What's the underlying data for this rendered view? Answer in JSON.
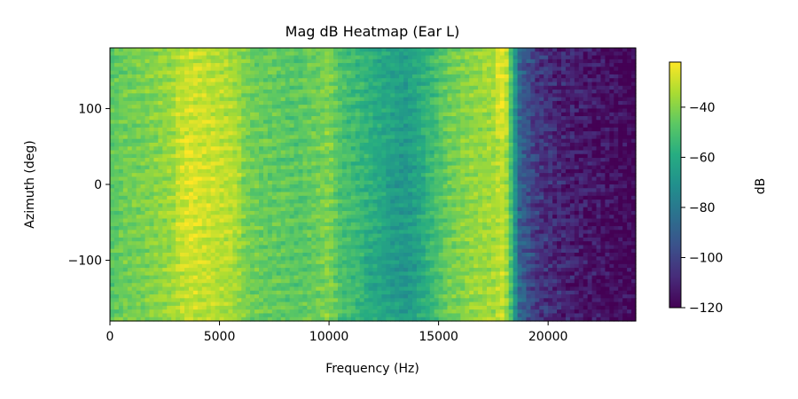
{
  "chart_data": {
    "type": "heatmap",
    "title": "Mag dB Heatmap (Ear L)",
    "xlabel": "Frequency (Hz)",
    "ylabel": "Azimuth (deg)",
    "colorbar_label": "dB",
    "colormap": "viridis",
    "xlim": [
      0,
      24000
    ],
    "ylim": [
      -180,
      180
    ],
    "clim": [
      -120,
      -22
    ],
    "x_ticks": [
      0,
      5000,
      10000,
      15000,
      20000
    ],
    "x_tick_labels": [
      "0",
      "5000",
      "10000",
      "15000",
      "20000"
    ],
    "y_ticks": [
      -100,
      0,
      100
    ],
    "y_tick_labels": [
      "−100",
      "0",
      "100"
    ],
    "colorbar_ticks": [
      -120,
      -100,
      -80,
      -60,
      -40
    ],
    "colorbar_tick_labels": [
      "−120",
      "−100",
      "−80",
      "−60",
      "−40"
    ],
    "frequency_profile_hz_db": [
      [
        0,
        -48
      ],
      [
        600,
        -44
      ],
      [
        1500,
        -42
      ],
      [
        2800,
        -37
      ],
      [
        3600,
        -31
      ],
      [
        4500,
        -33
      ],
      [
        5500,
        -36
      ],
      [
        6500,
        -44
      ],
      [
        7500,
        -46
      ],
      [
        8500,
        -48
      ],
      [
        9500,
        -44
      ],
      [
        10000,
        -40
      ],
      [
        10500,
        -50
      ],
      [
        11500,
        -55
      ],
      [
        12500,
        -62
      ],
      [
        13500,
        -66
      ],
      [
        14500,
        -56
      ],
      [
        15500,
        -44
      ],
      [
        16500,
        -38
      ],
      [
        17500,
        -36
      ],
      [
        18000,
        -30
      ],
      [
        18300,
        -50
      ],
      [
        18700,
        -88
      ],
      [
        19500,
        -104
      ],
      [
        21000,
        -112
      ],
      [
        24000,
        -120
      ]
    ],
    "notes": "Magnitude (dB) over azimuth (-180 to 180 deg) and frequency (0 to 24000 Hz); energy concentrated 3000-6000 Hz and 15000-18000 Hz, sharp roll-off above ~18300 Hz."
  }
}
